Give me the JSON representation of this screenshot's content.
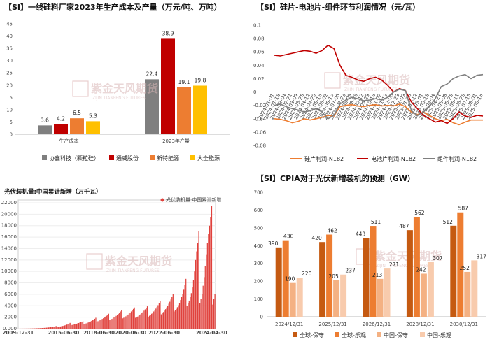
{
  "titles": {
    "p1": "【SI】一线硅料厂家2023年生产成本及产量（万元/吨、万吨）",
    "p2": "【SI】硅片-电池片-组件环节利润情况（元/瓦）",
    "p3": "光伏装机量:中国累计新增（万千瓦）",
    "p4": "【SI】CPIA对于光伏新增装机的预测（GW）"
  },
  "watermark": {
    "text": "紫金天风期货",
    "sub": "ZIJIN TIANFENG FUTURES"
  },
  "colors": {
    "s1": "#7f7f7f",
    "s2": "#c00000",
    "s3": "#ed7d31",
    "s4": "#ffc000",
    "c1": "#c55a11",
    "c2": "#f4b183",
    "c3": "#e06c6c"
  },
  "chart_data": [
    {
      "type": "bar",
      "title": "【SI】一线硅料厂家2023年生产成本及产量（万元/吨、万吨）",
      "categories": [
        "生产成本",
        "2023年产量"
      ],
      "series": [
        {
          "name": "协鑫科技（颗粒硅）",
          "values": [
            3.6,
            22.4
          ],
          "labels": [
            "3.6",
            "22.4"
          ]
        },
        {
          "name": "通威股份",
          "values": [
            4.2,
            38.9
          ],
          "labels": [
            "4.2",
            "38.9"
          ]
        },
        {
          "name": "新特能源",
          "values": [
            6.5,
            19.1
          ],
          "labels": [
            "6.5",
            "19.1"
          ]
        },
        {
          "name": "大全能源",
          "values": [
            5.3,
            19.8
          ],
          "labels": [
            "5.3",
            "19.8"
          ]
        }
      ],
      "yticks": [
        "0",
        "5",
        "10",
        "15",
        "20",
        "25",
        "30",
        "35",
        "40",
        "45"
      ],
      "ylim": [
        0,
        45
      ],
      "legend": "bottom"
    },
    {
      "type": "line",
      "title": "【SI】硅片-电池片-组件环节利润情况（元/瓦）",
      "x": [
        "2024-01-01",
        "2024-01-18",
        "2024-02-04",
        "2024-02-21",
        "2024-03-09",
        "2024-03-26",
        "2024-04-12",
        "2024-04-29",
        "2024-05-16",
        "2024-06-02",
        "2024-06-19",
        "2024-07-06",
        "2024-07-23",
        "2024-08-09",
        "2024-08-26",
        "2024-09-12",
        "2024-09-29",
        "2024-10-16",
        "2024-11-02",
        "2024-11-19",
        "2024-12-06",
        "2024-12-23",
        "2025-01-09",
        "2025-01-26",
        "2025-02-12",
        "2025-03-01",
        "2025-03-18",
        "2025-04-04",
        "2025-04-21",
        "2025-05-08",
        "2025-05-25",
        "2025-06-11",
        "2025-06-28",
        "2025-07-15",
        "2025-08-01",
        "2025-08-18"
      ],
      "xticks": [
        "2024-01-01",
        "2024-01-18",
        "2024-02-04",
        "2024-02-21",
        "2024-03-09",
        "2024-03-26",
        "2024-04-12",
        "2024-04-29",
        "2024-05-16",
        "2024-06-02",
        "2024-06-19",
        "2024-07-06",
        "2024-07-23",
        "2024-08-09",
        "2024-08-26",
        "2024-09-12",
        "2024-09-29",
        "2024-10-16",
        "2024-11-02",
        "2024-11-19",
        "2024-12-06",
        "2024-12-23",
        "2025-01-09",
        "2025-01-26",
        "2025-02-12",
        "2025-03-01",
        "2025-03-18",
        "2025-04-04",
        "2025-04-21",
        "2025-05-08",
        "2025-05-25",
        "2025-06-11",
        "2025-06-28",
        "2025-07-15",
        "2025-08-01",
        "2025-08-18"
      ],
      "series": [
        {
          "name": "硅片利润-N182",
          "values": [
            -0.04,
            -0.041,
            -0.043,
            -0.046,
            -0.044,
            -0.04,
            -0.042,
            -0.04,
            -0.038,
            -0.035,
            -0.036,
            -0.022,
            -0.02,
            -0.019,
            -0.021,
            -0.022,
            -0.02,
            -0.019,
            -0.021,
            -0.02,
            -0.021,
            -0.018,
            -0.022,
            -0.03,
            -0.034,
            -0.03,
            -0.035,
            -0.04,
            -0.043,
            -0.041,
            -0.046,
            -0.049,
            -0.045,
            -0.042,
            -0.042,
            -0.042
          ]
        },
        {
          "name": "电池片利润-N182",
          "values": [
            0.055,
            0.054,
            0.056,
            0.058,
            0.06,
            0.062,
            0.061,
            0.058,
            0.062,
            0.07,
            0.065,
            0.04,
            0.025,
            0.022,
            0.018,
            0.016,
            0.02,
            0.022,
            0.018,
            0.01,
            0.0,
            0.005,
            0.002,
            -0.015,
            -0.025,
            -0.035,
            -0.04,
            -0.045,
            -0.043,
            -0.047,
            -0.04,
            -0.03,
            -0.036,
            -0.038,
            -0.035,
            -0.036
          ]
        },
        {
          "name": "组件利润-N182",
          "values": [
            -0.02,
            -0.018,
            -0.022,
            -0.025,
            -0.027,
            -0.03,
            -0.028,
            -0.025,
            -0.03,
            -0.04,
            -0.035,
            -0.018,
            -0.012,
            -0.008,
            -0.01,
            -0.013,
            -0.012,
            -0.01,
            -0.012,
            -0.008,
            0.0,
            0.004,
            0.002,
            -0.028,
            -0.035,
            -0.03,
            -0.022,
            -0.01,
            0.008,
            0.012,
            0.02,
            0.024,
            0.026,
            0.02,
            0.025,
            0.026
          ]
        }
      ],
      "yticks": [
        "0.1",
        "0.08",
        "0.06",
        "0.04",
        "0.02",
        "0",
        "-0.02",
        "-0.04",
        "-0.06",
        "-0.08"
      ],
      "ylim": [
        -0.08,
        0.1
      ],
      "legend": "bottom"
    },
    {
      "type": "bar",
      "title": "光伏装机量:中国累计新增（万千瓦）",
      "series": [
        {
          "name": "光伏装机量:中国累计新增",
          "values": [
            3,
            5,
            7,
            10,
            12,
            14,
            16,
            18,
            20,
            22,
            24,
            30,
            35,
            40,
            45,
            50,
            60,
            70,
            80,
            90,
            100,
            110,
            120,
            130,
            140,
            150,
            170,
            190,
            210,
            230,
            250,
            280,
            320,
            360,
            400,
            450,
            300,
            320,
            340,
            380,
            420,
            460,
            500,
            560,
            620,
            700,
            800,
            900,
            1000,
            600,
            650,
            700,
            750,
            800,
            860,
            920,
            980,
            1050,
            1120,
            1200,
            1300,
            800,
            860,
            920,
            1000,
            1080,
            1160,
            1250,
            1350,
            1460,
            1580,
            1720,
            1900,
            1200,
            1300,
            1400,
            1500,
            1600,
            1700,
            1820,
            1950,
            2100,
            2250,
            2420,
            2600,
            1500,
            1600,
            1700,
            1820,
            1950,
            2080,
            2230,
            2400,
            2580,
            2780,
            3000,
            3250,
            1800,
            1900,
            2000,
            2150,
            2300,
            2450,
            2620,
            2800,
            3000,
            3220,
            3450,
            3700,
            1900,
            2000,
            2100,
            2250,
            2400,
            2560,
            2740,
            2930,
            3140,
            3370,
            3620,
            3900,
            2100,
            2250,
            2400,
            2600,
            2800,
            3000,
            3250,
            3500,
            3800,
            4100,
            4400,
            4800,
            2500,
            2700,
            2900,
            3150,
            3400,
            3700,
            4000,
            4350,
            4700,
            5100,
            5500,
            6000,
            3000,
            3200,
            3450,
            3750,
            4100,
            4500,
            5000,
            5500,
            6100,
            6800,
            7600,
            8700,
            4000,
            4400,
            4900,
            5500,
            6200,
            7200,
            8500,
            10000,
            12000,
            13500,
            15000,
            17000,
            4500,
            5200,
            6000,
            7500,
            9000,
            11000,
            13000,
            15000,
            16500,
            18000,
            19500,
            21500,
            4200,
            5200,
            6000
          ],
          "labels": [
            "光伏装机量:中国累计新增"
          ]
        }
      ],
      "xticks": [
        "2009-12-31",
        "2015-06-30",
        "2018-06-30",
        "2020-06-30",
        "2022-06-30",
        "2024-04-30"
      ],
      "yticks": [
        "0.000",
        "2000",
        "4000",
        "6000",
        "8000",
        "10000",
        "12000",
        "14000",
        "16000",
        "18000",
        "20000",
        "22000"
      ],
      "ylim": [
        0,
        22000
      ],
      "legend": "top"
    },
    {
      "type": "bar",
      "title": "【SI】CPIA对于光伏新增装机的预测（GW）",
      "categories": [
        "2024/12/31",
        "2025/12/31",
        "2026/12/31",
        "2028/12/31",
        "2030/12/31"
      ],
      "series": [
        {
          "name": "全球-保守",
          "values": [
            390,
            420,
            443,
            487,
            512
          ],
          "labels": [
            "390",
            "420",
            "443",
            "487",
            "512"
          ]
        },
        {
          "name": "全球-乐观",
          "values": [
            430,
            462,
            511,
            562,
            587
          ],
          "labels": [
            "430",
            "462",
            "511",
            "562",
            "587"
          ]
        },
        {
          "name": "中国-保守",
          "values": [
            190,
            205,
            213,
            242,
            252
          ],
          "labels": [
            "190",
            "205",
            "213",
            "242",
            "252"
          ]
        },
        {
          "name": "中国-乐观",
          "values": [
            220,
            237,
            271,
            307,
            317
          ],
          "labels": [
            "220",
            "237",
            "271",
            "307",
            "317"
          ]
        }
      ],
      "yticks": [
        "0",
        "100",
        "200",
        "300",
        "400",
        "500",
        "600",
        "700"
      ],
      "ylim": [
        0,
        700
      ],
      "legend": "bottom"
    }
  ]
}
